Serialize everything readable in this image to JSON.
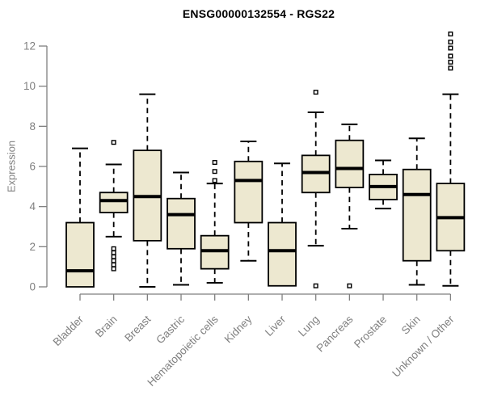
{
  "chart_data": {
    "type": "boxplot",
    "title": "ENSG00000132554 - RGS22",
    "ylabel": "Expression",
    "xlabel": "",
    "ylim": [
      0,
      12
    ],
    "yticks": [
      0,
      2,
      4,
      6,
      8,
      10,
      12
    ],
    "grid": false,
    "legend": null,
    "categories": [
      "Bladder",
      "Brain",
      "Breast",
      "Gastric",
      "Hematopoietic cells",
      "Kidney",
      "Liver",
      "Lung",
      "Pancreas",
      "Prostate",
      "Skin",
      "Unknown / Other"
    ],
    "boxes": [
      {
        "category": "Bladder",
        "whisker_low": 0.0,
        "q1": 0.0,
        "median": 0.8,
        "q3": 3.2,
        "whisker_high": 6.9,
        "outliers": []
      },
      {
        "category": "Brain",
        "whisker_low": 2.5,
        "q1": 3.7,
        "median": 4.3,
        "q3": 4.7,
        "whisker_high": 6.1,
        "outliers": [
          7.2,
          1.9,
          1.7,
          1.5,
          1.3,
          1.1,
          0.9
        ]
      },
      {
        "category": "Breast",
        "whisker_low": 0.0,
        "q1": 2.3,
        "median": 4.5,
        "q3": 6.8,
        "whisker_high": 9.6,
        "outliers": []
      },
      {
        "category": "Gastric",
        "whisker_low": 0.1,
        "q1": 1.9,
        "median": 3.6,
        "q3": 4.4,
        "whisker_high": 5.7,
        "outliers": []
      },
      {
        "category": "Hematopoietic cells",
        "whisker_low": 0.2,
        "q1": 0.9,
        "median": 1.8,
        "q3": 2.55,
        "whisker_high": 5.15,
        "outliers": [
          6.2,
          5.75,
          5.3
        ]
      },
      {
        "category": "Kidney",
        "whisker_low": 1.3,
        "q1": 3.2,
        "median": 5.3,
        "q3": 6.25,
        "whisker_high": 7.25,
        "outliers": []
      },
      {
        "category": "Liver",
        "whisker_low": 0.05,
        "q1": 0.05,
        "median": 1.8,
        "q3": 3.2,
        "whisker_high": 6.15,
        "outliers": []
      },
      {
        "category": "Lung",
        "whisker_low": 2.05,
        "q1": 4.7,
        "median": 5.7,
        "q3": 6.55,
        "whisker_high": 8.7,
        "outliers": [
          9.7,
          0.05
        ]
      },
      {
        "category": "Pancreas",
        "whisker_low": 2.9,
        "q1": 4.95,
        "median": 5.9,
        "q3": 7.3,
        "whisker_high": 8.1,
        "outliers": [
          0.05
        ]
      },
      {
        "category": "Prostate",
        "whisker_low": 3.9,
        "q1": 4.35,
        "median": 5.0,
        "q3": 5.6,
        "whisker_high": 6.3,
        "outliers": []
      },
      {
        "category": "Skin",
        "whisker_low": 0.1,
        "q1": 1.3,
        "median": 4.6,
        "q3": 5.85,
        "whisker_high": 7.4,
        "outliers": []
      },
      {
        "category": "Unknown / Other",
        "whisker_low": 0.05,
        "q1": 1.8,
        "median": 3.45,
        "q3": 5.15,
        "whisker_high": 9.6,
        "outliers": [
          12.6,
          12.2,
          11.9,
          11.5,
          11.2,
          10.9
        ]
      }
    ],
    "colors": {
      "box_fill": "#EDE8D0",
      "box_stroke": "#000000",
      "median": "#000000",
      "whisker": "#000000",
      "outlier_fill": "#FFFFFF",
      "outlier_stroke": "#000000",
      "axis": "#7F7F7F",
      "tick_label": "#808080",
      "title": "#000000",
      "background": "#FFFFFF"
    }
  }
}
